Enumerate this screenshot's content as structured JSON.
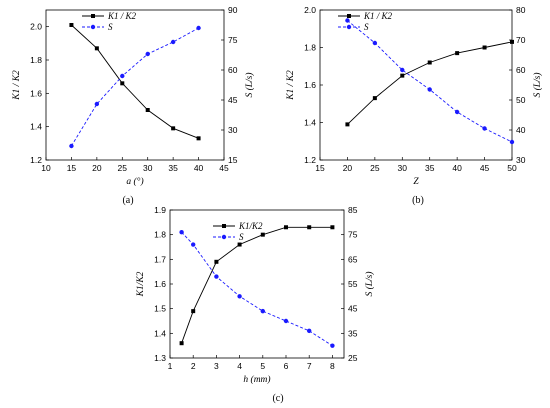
{
  "colors": {
    "ratio_series": "#000000",
    "s_series": "#1a1aff"
  },
  "chart_data": [
    {
      "type": "line",
      "caption": "(a)",
      "xlabel": "a (°)",
      "ylabel_left": "K1 / K2",
      "ylabel_right": "S (L/s)",
      "xlim": [
        10,
        45
      ],
      "xticks": [
        10,
        15,
        20,
        25,
        30,
        35,
        40,
        45
      ],
      "ylim_left": [
        1.2,
        2.1
      ],
      "yticks_left": [
        "1.2",
        "1.4",
        "1.6",
        "1.8",
        "2.0"
      ],
      "ylim_right": [
        15,
        90
      ],
      "yticks_right": [
        "15",
        "30",
        "45",
        "60",
        "75",
        "90"
      ],
      "legend": {
        "position": "top-center"
      },
      "series": [
        {
          "name": "K1 / K2",
          "axis": "left",
          "style": "solid",
          "marker": "square",
          "x": [
            15,
            20,
            25,
            30,
            35,
            40
          ],
          "y": [
            2.01,
            1.87,
            1.66,
            1.5,
            1.39,
            1.33
          ]
        },
        {
          "name": "S",
          "axis": "right",
          "style": "dashed",
          "marker": "circle",
          "x": [
            15,
            20,
            25,
            30,
            35,
            40
          ],
          "y": [
            22,
            43,
            57,
            68,
            74,
            81
          ]
        }
      ]
    },
    {
      "type": "line",
      "caption": "(b)",
      "xlabel": "Z",
      "ylabel_left": "K1 / K2",
      "ylabel_right": "S (L/s)",
      "xlim": [
        15,
        50
      ],
      "xticks": [
        15,
        20,
        25,
        30,
        35,
        40,
        45,
        50
      ],
      "ylim_left": [
        1.2,
        2.0
      ],
      "yticks_left": [
        "1.2",
        "1.4",
        "1.6",
        "1.8",
        "2.0"
      ],
      "ylim_right": [
        30,
        80
      ],
      "yticks_right": [
        "30",
        "40",
        "50",
        "60",
        "70",
        "80"
      ],
      "legend": {
        "position": "top-left"
      },
      "series": [
        {
          "name": "K1 / K2",
          "axis": "left",
          "style": "solid",
          "marker": "square",
          "x": [
            20,
            25,
            30,
            35,
            40,
            45,
            50
          ],
          "y": [
            1.39,
            1.53,
            1.65,
            1.72,
            1.77,
            1.8,
            1.83
          ]
        },
        {
          "name": "S",
          "axis": "right",
          "style": "dashed",
          "marker": "circle",
          "x": [
            20,
            25,
            30,
            35,
            40,
            45,
            50
          ],
          "y": [
            76.5,
            69,
            60,
            53.5,
            46,
            40.5,
            36
          ]
        }
      ]
    },
    {
      "type": "line",
      "caption": "(c)",
      "xlabel": "h (mm)",
      "ylabel_left": "K1/K2",
      "ylabel_right": "S (L/s)",
      "xlim": [
        1,
        8.5
      ],
      "xticks": [
        1,
        2,
        3,
        4,
        5,
        6,
        7,
        8
      ],
      "ylim_left": [
        1.3,
        1.9
      ],
      "yticks_left": [
        "1.3",
        "1.4",
        "1.5",
        "1.6",
        "1.7",
        "1.8",
        "1.9"
      ],
      "ylim_right": [
        25,
        85
      ],
      "yticks_right": [
        "25",
        "35",
        "45",
        "55",
        "65",
        "75",
        "85"
      ],
      "legend": {
        "position": "top-left"
      },
      "series": [
        {
          "name": "K1/K2",
          "axis": "left",
          "style": "solid",
          "marker": "square",
          "x": [
            1.5,
            2,
            3,
            4,
            5,
            6,
            7,
            8
          ],
          "y": [
            1.36,
            1.49,
            1.69,
            1.76,
            1.8,
            1.83,
            1.83,
            1.83
          ]
        },
        {
          "name": "S",
          "axis": "right",
          "style": "dashed",
          "marker": "circle",
          "x": [
            1.5,
            2,
            3,
            4,
            5,
            6,
            7,
            8
          ],
          "y": [
            76,
            71,
            58,
            50,
            44,
            40,
            36,
            30
          ]
        }
      ]
    }
  ]
}
